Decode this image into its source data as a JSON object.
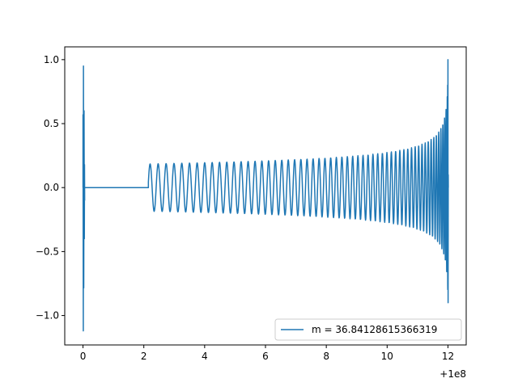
{
  "chart_data": {
    "type": "line",
    "title": "",
    "xlabel": "",
    "ylabel": "",
    "x_offset_label": "+1e8",
    "xlim": [
      -0.6,
      12.6
    ],
    "ylim": [
      -1.23,
      1.1
    ],
    "x_ticks": [
      0,
      2,
      4,
      6,
      8,
      10,
      12
    ],
    "x_tick_labels": [
      "0",
      "2",
      "4",
      "6",
      "8",
      "10",
      "12"
    ],
    "y_ticks": [
      -1.0,
      -0.5,
      0.0,
      0.5,
      1.0
    ],
    "y_tick_labels": [
      "−1.0",
      "−0.5",
      "0.0",
      "0.5",
      "1.0"
    ],
    "grid": false,
    "legend_position": "lower-right",
    "series": [
      {
        "name": "m = 36.84128615366319",
        "color": "#1f77b4",
        "description_points": {
          "initial_burst": {
            "x": 0.0,
            "y_max": 0.95,
            "y_min": -1.12
          },
          "flat_segment": {
            "x_start": 0.05,
            "x_end": 2.15,
            "y": 0.0
          },
          "oscillation_start": {
            "x": 2.15,
            "amplitude": 0.185
          },
          "oscillation_mid": {
            "x": 10.0,
            "amplitude": 0.27
          },
          "oscillation_late": {
            "x": 11.5,
            "amplitude": 0.5
          },
          "final_burst": {
            "x": 12.0,
            "y_max": 1.0,
            "y_min": -0.9
          }
        }
      }
    ]
  }
}
